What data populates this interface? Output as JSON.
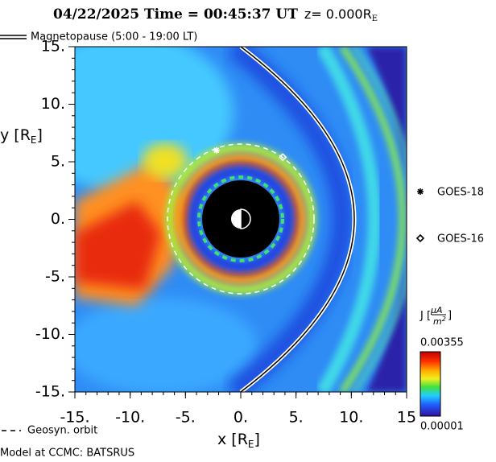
{
  "chart_data": {
    "type": "heatmap",
    "title": "04/22/2025 Time = 00:45:37 UT",
    "z_label": [
      "z= 0.000R",
      "E"
    ],
    "xlabel": [
      "x [R",
      "E",
      "]"
    ],
    "ylabel": [
      "y [R",
      "E",
      "]"
    ],
    "xlim": [
      -15,
      15
    ],
    "ylim": [
      -15,
      15
    ],
    "xticks": [
      {
        "value": -15,
        "label": "-15."
      },
      {
        "value": -10,
        "label": "-10."
      },
      {
        "value": -5,
        "label": "-5."
      },
      {
        "value": 0,
        "label": "0."
      },
      {
        "value": 5,
        "label": "5."
      },
      {
        "value": 10,
        "label": "10."
      },
      15
    ],
    "yticks": [
      {
        "value": -15,
        "label": "-15."
      },
      {
        "value": -10,
        "label": "-10."
      },
      {
        "value": -5,
        "label": "-5."
      },
      {
        "value": 0,
        "label": "0."
      },
      {
        "value": 5,
        "label": "5."
      },
      {
        "value": 10,
        "label": "10."
      },
      {
        "value": 15,
        "label": "15."
      }
    ],
    "series": [
      {
        "name": "GOES-18",
        "marker": "star",
        "color": "#ffffff",
        "x": [
          -2.2
        ],
        "y": [
          6.0
        ]
      },
      {
        "name": "GOES-16",
        "marker": "diamond",
        "color": "#ffffff",
        "x": [
          3.8
        ],
        "y": [
          5.4
        ]
      }
    ],
    "colorbar_label": [
      "J [",
      "μA",
      "m",
      "2",
      "]"
    ],
    "clim": [
      1e-05,
      0.00355
    ],
    "legend": {
      "magnetopause": "Magnetopause (5:00 - 19:00 LT)",
      "geosync": "Geosyn. orbit"
    },
    "footer": "Model at CCMC: BATSRUS"
  }
}
